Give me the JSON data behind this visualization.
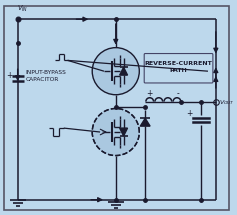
{
  "bg_color": "#bdd8ec",
  "line_color": "#1a1a2e",
  "fig_width": 2.37,
  "fig_height": 2.15,
  "dpi": 100,
  "reverse_current_label": "REVERSE-CURRENT\nPATH",
  "input_bypass_label": "INPUT-BYPASS\nCAPACITOR"
}
